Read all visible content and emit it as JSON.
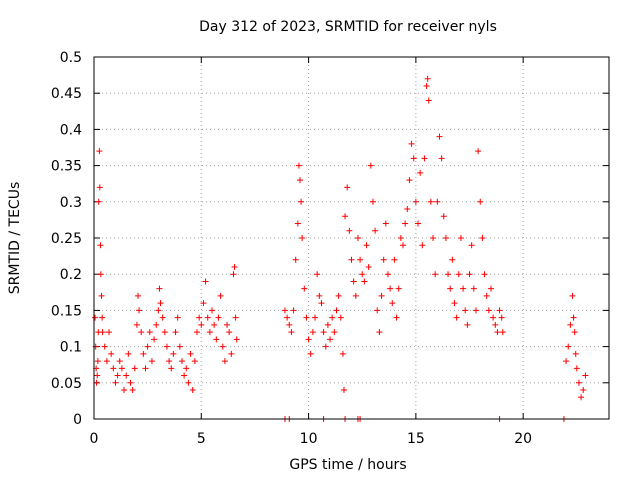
{
  "chart_data": {
    "type": "scatter",
    "title": "Day 312 of 2023, SRMTID for receiver nyls",
    "xlabel": "GPS time / hours",
    "ylabel": "SRMTID / TECUs",
    "xlim": [
      0,
      24
    ],
    "ylim": [
      0,
      0.5
    ],
    "xticks": [
      0,
      5,
      10,
      15,
      20
    ],
    "yticks": [
      0,
      0.05,
      0.1,
      0.15,
      0.2,
      0.25,
      0.3,
      0.35,
      0.4,
      0.45,
      0.5
    ],
    "xtick_labels": [
      "0",
      "5",
      "10",
      "15",
      "20"
    ],
    "ytick_labels": [
      "0",
      "0.05",
      "0.1",
      "0.15",
      "0.2",
      "0.25",
      "0.3",
      "0.35",
      "0.4",
      "0.45",
      "0.5"
    ],
    "grid": true,
    "legend": false,
    "color": "#ff0000",
    "marker": "plus",
    "series": [
      {
        "points": [
          [
            0.05,
            0.14
          ],
          [
            0.08,
            0.1
          ],
          [
            0.1,
            0.07
          ],
          [
            0.12,
            0.05
          ],
          [
            0.15,
            0.06
          ],
          [
            0.18,
            0.08
          ],
          [
            0.2,
            0.12
          ],
          [
            0.22,
            0.3
          ],
          [
            0.25,
            0.37
          ],
          [
            0.27,
            0.32
          ],
          [
            0.3,
            0.24
          ],
          [
            0.32,
            0.2
          ],
          [
            0.35,
            0.17
          ],
          [
            0.38,
            0.14
          ],
          [
            0.4,
            0.12
          ],
          [
            0.5,
            0.1
          ],
          [
            0.6,
            0.08
          ],
          [
            0.7,
            0.12
          ],
          [
            0.8,
            0.09
          ],
          [
            0.9,
            0.07
          ],
          [
            1.0,
            0.05
          ],
          [
            1.1,
            0.06
          ],
          [
            1.2,
            0.08
          ],
          [
            1.3,
            0.07
          ],
          [
            1.4,
            0.04
          ],
          [
            1.5,
            0.06
          ],
          [
            1.6,
            0.09
          ],
          [
            1.7,
            0.05
          ],
          [
            1.8,
            0.04
          ],
          [
            1.9,
            0.07
          ],
          [
            2.0,
            0.13
          ],
          [
            2.05,
            0.17
          ],
          [
            2.1,
            0.15
          ],
          [
            2.2,
            0.12
          ],
          [
            2.3,
            0.09
          ],
          [
            2.4,
            0.07
          ],
          [
            2.5,
            0.1
          ],
          [
            2.6,
            0.12
          ],
          [
            2.7,
            0.08
          ],
          [
            2.8,
            0.11
          ],
          [
            2.9,
            0.13
          ],
          [
            3.0,
            0.15
          ],
          [
            3.05,
            0.18
          ],
          [
            3.1,
            0.16
          ],
          [
            3.2,
            0.14
          ],
          [
            3.3,
            0.12
          ],
          [
            3.4,
            0.1
          ],
          [
            3.5,
            0.08
          ],
          [
            3.6,
            0.07
          ],
          [
            3.7,
            0.09
          ],
          [
            3.8,
            0.12
          ],
          [
            3.9,
            0.14
          ],
          [
            4.0,
            0.1
          ],
          [
            4.1,
            0.08
          ],
          [
            4.2,
            0.06
          ],
          [
            4.3,
            0.07
          ],
          [
            4.4,
            0.05
          ],
          [
            4.5,
            0.09
          ],
          [
            4.6,
            0.04
          ],
          [
            4.7,
            0.08
          ],
          [
            4.8,
            0.12
          ],
          [
            4.9,
            0.14
          ],
          [
            5.0,
            0.13
          ],
          [
            5.1,
            0.16
          ],
          [
            5.2,
            0.19
          ],
          [
            5.3,
            0.14
          ],
          [
            5.4,
            0.12
          ],
          [
            5.5,
            0.15
          ],
          [
            5.6,
            0.13
          ],
          [
            5.7,
            0.11
          ],
          [
            5.8,
            0.14
          ],
          [
            5.9,
            0.17
          ],
          [
            6.0,
            0.1
          ],
          [
            6.1,
            0.08
          ],
          [
            6.2,
            0.13
          ],
          [
            6.3,
            0.12
          ],
          [
            6.4,
            0.09
          ],
          [
            6.5,
            0.2
          ],
          [
            6.55,
            0.21
          ],
          [
            6.6,
            0.14
          ],
          [
            6.65,
            0.11
          ],
          [
            8.9,
            0.15
          ],
          [
            9.0,
            0.14
          ],
          [
            9.1,
            0.13
          ],
          [
            9.2,
            0.12
          ],
          [
            9.3,
            0.15
          ],
          [
            9.4,
            0.22
          ],
          [
            9.5,
            0.27
          ],
          [
            9.55,
            0.35
          ],
          [
            9.6,
            0.33
          ],
          [
            9.65,
            0.3
          ],
          [
            9.7,
            0.25
          ],
          [
            9.8,
            0.18
          ],
          [
            9.9,
            0.14
          ],
          [
            10.0,
            0.11
          ],
          [
            10.1,
            0.09
          ],
          [
            10.2,
            0.12
          ],
          [
            10.3,
            0.14
          ],
          [
            10.4,
            0.2
          ],
          [
            10.5,
            0.17
          ],
          [
            10.6,
            0.16
          ],
          [
            10.7,
            0.12
          ],
          [
            10.8,
            0.1
          ],
          [
            10.9,
            0.13
          ],
          [
            11.0,
            0.11
          ],
          [
            11.1,
            0.14
          ],
          [
            11.2,
            0.12
          ],
          [
            11.3,
            0.15
          ],
          [
            11.4,
            0.17
          ],
          [
            11.5,
            0.14
          ],
          [
            11.6,
            0.09
          ],
          [
            11.65,
            0.04
          ],
          [
            11.7,
            0.28
          ],
          [
            11.8,
            0.32
          ],
          [
            11.9,
            0.26
          ],
          [
            12.0,
            0.22
          ],
          [
            12.1,
            0.19
          ],
          [
            12.2,
            0.17
          ],
          [
            12.3,
            0.25
          ],
          [
            12.4,
            0.22
          ],
          [
            12.5,
            0.2
          ],
          [
            12.6,
            0.19
          ],
          [
            12.7,
            0.24
          ],
          [
            12.8,
            0.21
          ],
          [
            12.9,
            0.35
          ],
          [
            13.0,
            0.3
          ],
          [
            13.1,
            0.26
          ],
          [
            13.2,
            0.15
          ],
          [
            13.3,
            0.12
          ],
          [
            13.4,
            0.17
          ],
          [
            13.5,
            0.22
          ],
          [
            13.6,
            0.27
          ],
          [
            13.7,
            0.2
          ],
          [
            13.8,
            0.18
          ],
          [
            13.9,
            0.16
          ],
          [
            14.0,
            0.22
          ],
          [
            14.1,
            0.14
          ],
          [
            14.2,
            0.18
          ],
          [
            14.3,
            0.25
          ],
          [
            14.4,
            0.24
          ],
          [
            14.5,
            0.27
          ],
          [
            14.6,
            0.29
          ],
          [
            14.7,
            0.33
          ],
          [
            14.8,
            0.38
          ],
          [
            14.9,
            0.36
          ],
          [
            15.0,
            0.3
          ],
          [
            15.1,
            0.27
          ],
          [
            15.2,
            0.34
          ],
          [
            15.3,
            0.24
          ],
          [
            15.4,
            0.36
          ],
          [
            15.5,
            0.46
          ],
          [
            15.55,
            0.47
          ],
          [
            15.6,
            0.44
          ],
          [
            15.7,
            0.3
          ],
          [
            15.8,
            0.25
          ],
          [
            15.9,
            0.2
          ],
          [
            16.0,
            0.3
          ],
          [
            16.1,
            0.39
          ],
          [
            16.2,
            0.36
          ],
          [
            16.3,
            0.28
          ],
          [
            16.4,
            0.25
          ],
          [
            16.5,
            0.2
          ],
          [
            16.6,
            0.18
          ],
          [
            16.7,
            0.22
          ],
          [
            16.8,
            0.16
          ],
          [
            16.9,
            0.14
          ],
          [
            17.0,
            0.2
          ],
          [
            17.1,
            0.25
          ],
          [
            17.2,
            0.18
          ],
          [
            17.3,
            0.15
          ],
          [
            17.4,
            0.13
          ],
          [
            17.5,
            0.2
          ],
          [
            17.6,
            0.24
          ],
          [
            17.7,
            0.18
          ],
          [
            17.8,
            0.15
          ],
          [
            17.9,
            0.37
          ],
          [
            18.0,
            0.3
          ],
          [
            18.1,
            0.25
          ],
          [
            18.2,
            0.2
          ],
          [
            18.3,
            0.17
          ],
          [
            18.4,
            0.15
          ],
          [
            18.5,
            0.18
          ],
          [
            18.6,
            0.14
          ],
          [
            18.7,
            0.13
          ],
          [
            18.8,
            0.12
          ],
          [
            18.9,
            0.15
          ],
          [
            19.0,
            0.14
          ],
          [
            19.05,
            0.12
          ],
          [
            22.0,
            0.08
          ],
          [
            22.1,
            0.1
          ],
          [
            22.2,
            0.13
          ],
          [
            22.3,
            0.17
          ],
          [
            22.35,
            0.14
          ],
          [
            22.4,
            0.12
          ],
          [
            22.45,
            0.09
          ],
          [
            22.5,
            0.07
          ],
          [
            22.6,
            0.05
          ],
          [
            22.7,
            0.03
          ],
          [
            22.8,
            0.04
          ],
          [
            22.9,
            0.06
          ]
        ]
      }
    ],
    "zero_points_x": [
      8.9,
      9.1,
      10.7,
      11.7,
      12.3,
      12.4,
      18.9,
      21.9
    ]
  }
}
